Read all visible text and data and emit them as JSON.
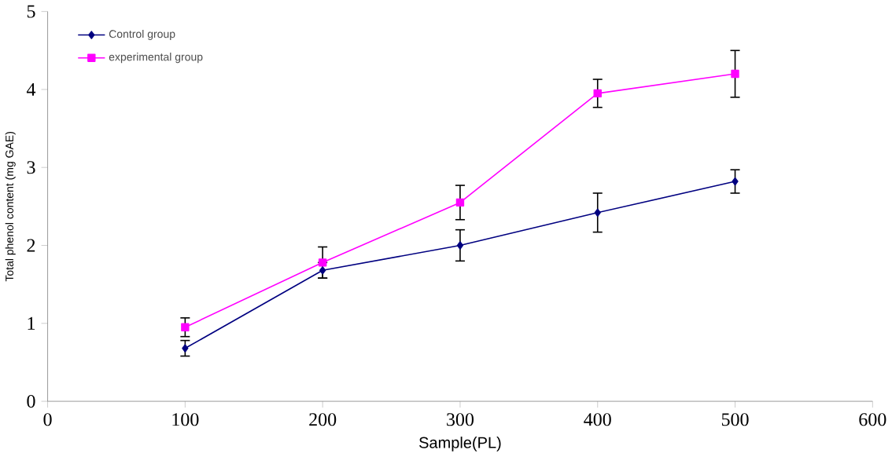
{
  "chart_data": {
    "type": "line",
    "xlabel": "Sample(PL)",
    "ylabel": "Total phenol content (mg GAE)",
    "x": [
      100,
      200,
      300,
      400,
      500
    ],
    "series": [
      {
        "name": "Control group",
        "color": "#000080",
        "marker": "diamond",
        "values": [
          0.68,
          1.68,
          2.0,
          2.42,
          2.82
        ],
        "errors": [
          0.1,
          0.1,
          0.2,
          0.25,
          0.15
        ]
      },
      {
        "name": "experimental group",
        "color": "#ff00ff",
        "marker": "square",
        "values": [
          0.95,
          1.78,
          2.55,
          3.95,
          4.2
        ],
        "errors": [
          0.12,
          0.2,
          0.22,
          0.18,
          0.3
        ]
      }
    ],
    "xlim": [
      0,
      600
    ],
    "xticks": [
      0,
      100,
      200,
      300,
      400,
      500,
      600
    ],
    "ylim": [
      0,
      5
    ],
    "yticks": [
      0,
      1,
      2,
      3,
      4,
      5
    ],
    "grid": false,
    "legend": "top left"
  }
}
